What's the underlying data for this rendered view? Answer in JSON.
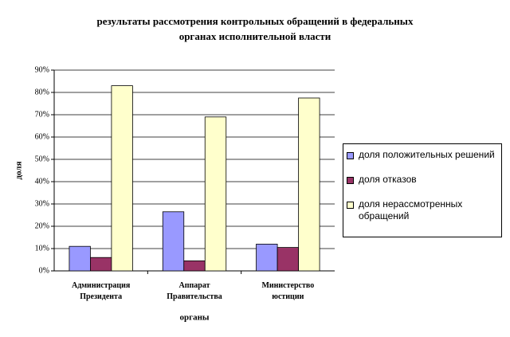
{
  "chart_data": {
    "type": "bar",
    "title": [
      "результаты рассмотрения контрольных обращений в федеральных",
      "органах исполнительной власти"
    ],
    "x_label": "органы",
    "y_label": "доля",
    "categories": [
      "Администрация Президента",
      "Аппарат Правительства",
      "Министерство юстиции"
    ],
    "series": [
      {
        "name": "доля положительных решений",
        "color": "#9999ff",
        "values": [
          11,
          26.5,
          12
        ]
      },
      {
        "name": "доля отказов",
        "color": "#993366",
        "values": [
          6,
          4.5,
          10.5
        ]
      },
      {
        "name": "доля нерассмотренных обращений",
        "color": "#ffffcc",
        "values": [
          83,
          69,
          77.5
        ]
      }
    ],
    "ylim": [
      0,
      90
    ],
    "yticks": [
      {
        "value": 0,
        "label": "0%"
      },
      {
        "value": 10,
        "label": "10%"
      },
      {
        "value": 20,
        "label": "20%"
      },
      {
        "value": 30,
        "label": "30%"
      },
      {
        "value": 40,
        "label": "40%"
      },
      {
        "value": 50,
        "label": "50%"
      },
      {
        "value": 60,
        "label": "60%"
      },
      {
        "value": 70,
        "label": "70%"
      },
      {
        "value": 80,
        "label": "80%"
      },
      {
        "value": 90,
        "label": "90%"
      }
    ],
    "grid": true,
    "legend": "right"
  }
}
